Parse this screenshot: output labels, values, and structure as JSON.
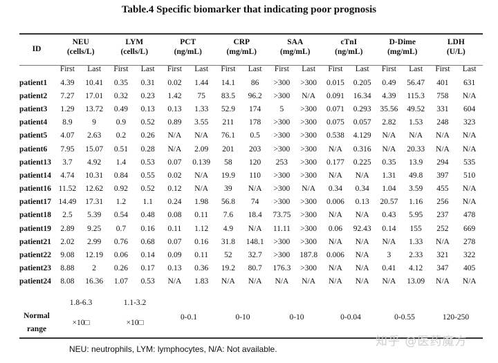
{
  "title": "Table.4 Specific biomarker that indicating poor prognosis",
  "id_header": "ID",
  "biomarkers": [
    {
      "name": "NEU",
      "unit": "(cells/L)"
    },
    {
      "name": "LYM",
      "unit": "(cells/L)"
    },
    {
      "name": "PCT",
      "unit": "(ng/mL)"
    },
    {
      "name": "CRP",
      "unit": "(mg/mL)"
    },
    {
      "name": "SAA",
      "unit": "(mg/mL)"
    },
    {
      "name": "cTnI",
      "unit": "(ng/mL)"
    },
    {
      "name": "D-Dime",
      "unit": "(mg/mL)"
    },
    {
      "name": "LDH",
      "unit": "(U/L)"
    }
  ],
  "sub_first": "First",
  "sub_last": "Last",
  "rows": [
    [
      "patient1",
      "4.39",
      "10.41",
      "0.35",
      "0.31",
      "0.02",
      "1.44",
      "14.1",
      "86",
      ">300",
      ">300",
      "0.015",
      "0.205",
      "0.49",
      "56.47",
      "401",
      "631"
    ],
    [
      "patient2",
      "7.27",
      "17.01",
      "0.32",
      "0.23",
      "1.42",
      "75",
      "83.5",
      "96.2",
      ">300",
      "N/A",
      "0.091",
      "16.34",
      "4.39",
      "115.3",
      "758",
      "N/A"
    ],
    [
      "patient3",
      "1.29",
      "13.72",
      "0.49",
      "0.13",
      "0.13",
      "1.33",
      "52.9",
      "174",
      "5",
      ">300",
      "0.071",
      "0.293",
      "35.56",
      "49.52",
      "331",
      "604"
    ],
    [
      "patient4",
      "8.9",
      "9",
      "0.9",
      "0.52",
      "0.89",
      "3.55",
      "211",
      "178",
      ">300",
      ">300",
      "0.075",
      "0.057",
      "2.82",
      "1.53",
      "248",
      "323"
    ],
    [
      "patient5",
      "4.07",
      "2.63",
      "0.2",
      "0.26",
      "N/A",
      "N/A",
      "76.1",
      "0.5",
      ">300",
      ">300",
      "0.538",
      "4.129",
      "N/A",
      "N/A",
      "N/A",
      "N/A"
    ],
    [
      "patient6",
      "7.95",
      "15.07",
      "0.51",
      "0.28",
      "N/A",
      "2.09",
      "201",
      "203",
      ">300",
      ">300",
      "N/A",
      "0.316",
      "N/A",
      "20.33",
      "N/A",
      "N/A"
    ],
    [
      "patient13",
      "3.7",
      "4.92",
      "1.4",
      "0.53",
      "0.07",
      "0.139",
      "58",
      "120",
      "253",
      ">300",
      "0.177",
      "0.225",
      "0.35",
      "13.9",
      "294",
      "535"
    ],
    [
      "patient14",
      "4.74",
      "10.31",
      "0.84",
      "0.55",
      "0.02",
      "N/A",
      "19.9",
      "110",
      ">300",
      ">300",
      "N/A",
      "N/A",
      "1.31",
      "49.8",
      "397",
      "510"
    ],
    [
      "patient16",
      "11.52",
      "12.62",
      "0.92",
      "0.52",
      "0.12",
      "N/A",
      "39",
      "N/A",
      ">300",
      "N/A",
      "0.34",
      "0.34",
      "1.04",
      "3.59",
      "455",
      "N/A"
    ],
    [
      "patient17",
      "14.49",
      "17.31",
      "1.2",
      "1.1",
      "0.24",
      "1.98",
      "56.8",
      "74",
      ">300",
      ">300",
      "0.006",
      "0.13",
      "20.57",
      "1.16",
      "256",
      "N/A"
    ],
    [
      "patient18",
      "2.5",
      "5.39",
      "0.54",
      "0.48",
      "0.08",
      "0.11",
      "7.6",
      "18.4",
      "73.75",
      ">300",
      "N/A",
      "N/A",
      "0.43",
      "5.95",
      "237",
      "478"
    ],
    [
      "patient19",
      "2.89",
      "9.25",
      "0.7",
      "0.16",
      "0.11",
      "1.12",
      "4.9",
      "N/A",
      "11.11",
      ">300",
      "0.06",
      "92.43",
      "0.14",
      "155",
      "252",
      "669"
    ],
    [
      "patient21",
      "2.02",
      "2.99",
      "0.76",
      "0.68",
      "0.07",
      "0.16",
      "31.8",
      "148.1",
      ">300",
      ">300",
      "N/A",
      "N/A",
      "N/A",
      "1.33",
      "N/A",
      "278"
    ],
    [
      "patient22",
      "9.08",
      "12.19",
      "0.06",
      "0.14",
      "0.09",
      "0.11",
      "52",
      "32.7",
      ">300",
      "187.8",
      "0.006",
      "N/A",
      "3",
      "2.33",
      "321",
      "322"
    ],
    [
      "patient23",
      "8.88",
      "2",
      "0.26",
      "0.17",
      "0.13",
      "0.36",
      "19.2",
      "80.7",
      "176.3",
      ">300",
      "N/A",
      "N/A",
      "0.41",
      "4.12",
      "347",
      "405"
    ],
    [
      "patient24",
      "8.08",
      "16.36",
      "1.07",
      "0.53",
      "N/A",
      "1.83",
      "N/A",
      "N/A",
      "N/A",
      "N/A",
      "N/A",
      "N/A",
      "N/A",
      "13.09",
      "N/A",
      "N/A"
    ]
  ],
  "normal_range": {
    "label_line1": "Normal",
    "label_line2": "range",
    "neu_range": "1.8-6.3",
    "neu_unit": "×10□",
    "lym_range": "1.1-3.2",
    "lym_unit": "×10□",
    "pct": "0-0.1",
    "crp": "0-10",
    "saa": "0-10",
    "ctni": "0-0.04",
    "ddimer": "0-0.55",
    "ldh": "120-250"
  },
  "footnote": "NEU: neutrophils, LYM: lymphocytes, N/A: Not available.",
  "watermark": "知乎 @医药魔方"
}
